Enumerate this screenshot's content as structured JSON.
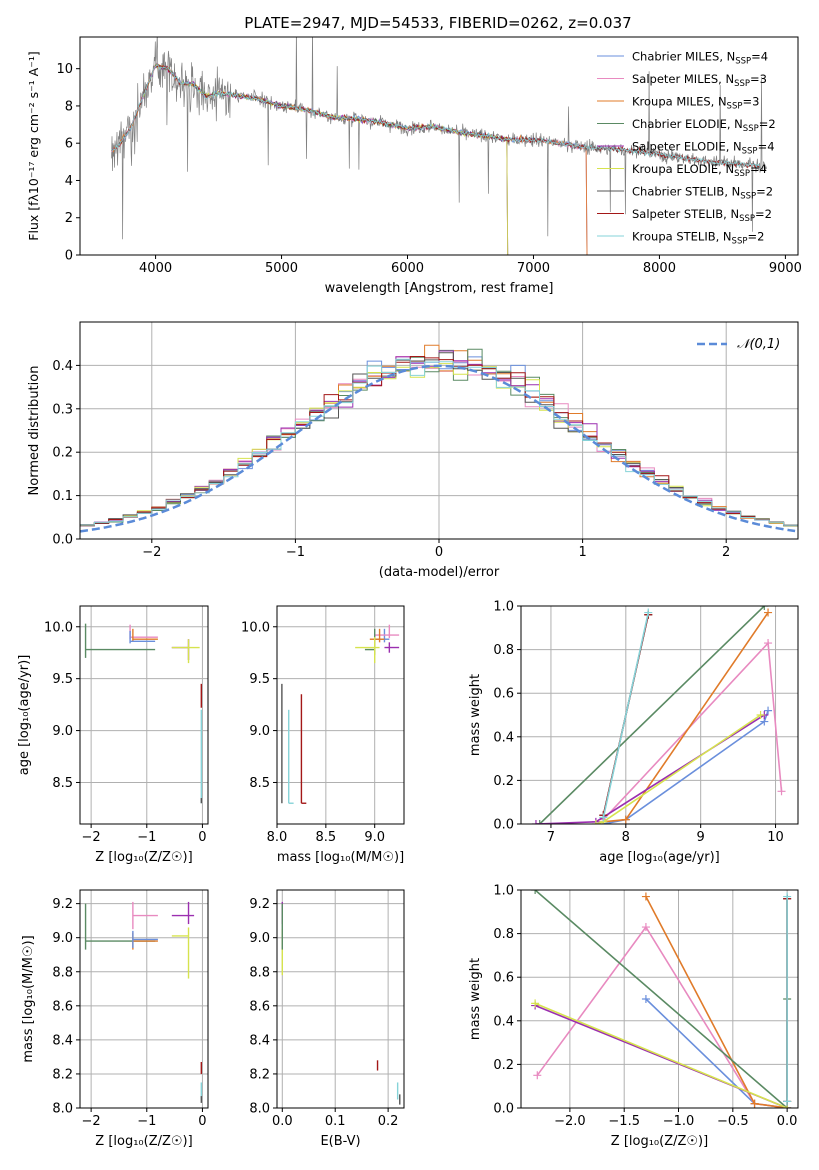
{
  "figure": {
    "title": "PLATE=2947, MJD=54533, FIBERID=0262, z=0.037"
  },
  "colors": {
    "Chabrier MILES": "#6a8fdc",
    "Salpeter MILES": "#e88ac0",
    "Kroupa MILES": "#e07b2a",
    "Chabrier ELODIE": "#5a8a63",
    "Salpeter ELODIE": "#9b2fb0",
    "Kroupa ELODIE": "#d6e34e",
    "Chabrier STELIB": "#555555",
    "Salpeter STELIB": "#a31717",
    "Kroupa STELIB": "#86d3d8",
    "data": "#808080",
    "normal": "#5b8bd8",
    "grid": "#b0b0b0"
  },
  "chart_data": [
    {
      "id": "spectrum",
      "type": "line",
      "title": "PLATE=2947, MJD=54533, FIBERID=0262, z=0.037",
      "xlabel": "wavelength [Angstrom, rest frame]",
      "ylabel": "Flux [fλ10⁻¹⁷ erg cm⁻² s⁻¹ A⁻¹]",
      "xlim": [
        3400,
        9100
      ],
      "ylim": [
        0,
        11.7
      ],
      "xticks": [
        4000,
        5000,
        6000,
        7000,
        8000,
        9000
      ],
      "yticks": [
        0,
        2,
        4,
        6,
        8,
        10
      ],
      "grid": false,
      "legend_position": "top-right",
      "data_x": [
        3650,
        3700,
        3800,
        3900,
        4000,
        4100,
        4200,
        4300,
        4400,
        4500,
        4600,
        4800,
        5000,
        5200,
        5400,
        5600,
        5800,
        6000,
        6200,
        6400,
        6600,
        6800,
        7000,
        7200,
        7400,
        7600,
        7800,
        8000,
        8200,
        8400,
        8600,
        8800,
        9000
      ],
      "data_y": [
        5.6,
        5.8,
        6.8,
        8.5,
        10.2,
        10.0,
        9.2,
        9.2,
        8.5,
        8.7,
        8.6,
        8.4,
        8.0,
        7.8,
        7.4,
        7.3,
        7.1,
        6.8,
        6.9,
        6.6,
        6.4,
        6.2,
        6.2,
        6.0,
        5.8,
        5.7,
        5.6,
        5.4,
        5.2,
        5.0,
        4.9,
        4.8,
        4.7
      ],
      "series": [
        {
          "name": "Chabrier MILES, N_SSP=4",
          "label_main": "Chabrier MILES, N",
          "label_sub": "SSP",
          "label_tail": "=4",
          "range": [
            3650,
            7420
          ]
        },
        {
          "name": "Salpeter MILES, N_SSP=3",
          "label_main": "Salpeter MILES, N",
          "label_sub": "SSP",
          "label_tail": "=3",
          "range": [
            3650,
            7420
          ]
        },
        {
          "name": "Kroupa MILES, N_SSP=3",
          "label_main": "Kroupa MILES, N",
          "label_sub": "SSP",
          "label_tail": "=3",
          "range": [
            3650,
            7420
          ]
        },
        {
          "name": "Chabrier ELODIE, N_SSP=2",
          "label_main": "Chabrier ELODIE, N",
          "label_sub": "SSP",
          "label_tail": "=2",
          "range": [
            3900,
            6790
          ]
        },
        {
          "name": "Salpeter ELODIE, N_SSP=4",
          "label_main": "Salpeter ELODIE, N",
          "label_sub": "SSP",
          "label_tail": "=4",
          "range": [
            3900,
            6790
          ]
        },
        {
          "name": "Kroupa ELODIE, N_SSP=4",
          "label_main": "Kroupa ELODIE, N",
          "label_sub": "SSP",
          "label_tail": "=4",
          "range": [
            3900,
            6790
          ]
        },
        {
          "name": "Chabrier STELIB, N_SSP=2",
          "label_main": "Chabrier STELIB, N",
          "label_sub": "SSP",
          "label_tail": "=2",
          "range": [
            3650,
            8800
          ]
        },
        {
          "name": "Salpeter STELIB, N_SSP=2",
          "label_main": "Salpeter STELIB, N",
          "label_sub": "SSP",
          "label_tail": "=2",
          "range": [
            3650,
            8800
          ]
        },
        {
          "name": "Kroupa STELIB, N_SSP=2",
          "label_main": "Kroupa STELIB, N",
          "label_sub": "SSP",
          "label_tail": "=2",
          "range": [
            3650,
            8800
          ]
        }
      ]
    },
    {
      "id": "residuals",
      "type": "histogram",
      "xlabel": "(data-model)/error",
      "ylabel": "Normed distribution",
      "xlim": [
        -2.5,
        2.5
      ],
      "ylim": [
        0,
        0.5
      ],
      "xticks": [
        -2,
        -1,
        0,
        1,
        2
      ],
      "yticks": [
        0.0,
        0.1,
        0.2,
        0.3,
        0.4
      ],
      "grid": true,
      "legend_position": "top-right",
      "reference": {
        "name": "𝒩(0,1)",
        "mean": 0,
        "sigma": 1
      },
      "bin_width": 0.1
    },
    {
      "id": "age_vs_Z",
      "type": "errorbar",
      "xlabel": "Z [log₁₀(Z/Z☉)]",
      "ylabel": "age  [log₁₀(age/yr)]",
      "xlim": [
        -2.2,
        0.1
      ],
      "ylim": [
        8.1,
        10.2
      ],
      "xticks": [
        -2,
        -1,
        0
      ],
      "yticks": [
        8.5,
        9.0,
        9.5,
        10.0
      ],
      "grid": true,
      "points": [
        {
          "model": "Chabrier ELODIE",
          "x": -2.1,
          "y": 9.78,
          "x_err": [
            0.0,
            1.25
          ],
          "y_err": [
            0.08,
            0.25
          ]
        },
        {
          "model": "Salpeter MILES",
          "x": -1.3,
          "y": 9.9,
          "x_err": [
            0.0,
            0.5
          ],
          "y_err": [
            0.02,
            0.12
          ]
        },
        {
          "model": "Kroupa MILES",
          "x": -1.25,
          "y": 9.88,
          "x_err": [
            0.0,
            0.45
          ],
          "y_err": [
            0.02,
            0.1
          ]
        },
        {
          "model": "Chabrier MILES",
          "x": -1.3,
          "y": 9.86,
          "x_err": [
            0.0,
            0.45
          ],
          "y_err": [
            0.02,
            0.1
          ]
        },
        {
          "model": "Salpeter ELODIE",
          "x": -0.25,
          "y": 9.8,
          "x_err": [
            0.3,
            0.0
          ],
          "y_err": [
            0.12,
            0.08
          ]
        },
        {
          "model": "Kroupa ELODIE",
          "x": -0.25,
          "y": 9.8,
          "x_err": [
            0.3,
            0.2
          ],
          "y_err": [
            0.15,
            0.08
          ]
        },
        {
          "model": "Salpeter STELIB",
          "x": -0.02,
          "y": 9.3,
          "x_err": [
            0.0,
            0.0
          ],
          "y_err": [
            0.08,
            0.15
          ]
        },
        {
          "model": "Kroupa STELIB",
          "x": -0.02,
          "y": 8.3,
          "x_err": [
            0.0,
            0.0
          ],
          "y_err": [
            0.0,
            0.9
          ]
        },
        {
          "model": "Chabrier STELIB",
          "x": -0.02,
          "y": 8.3,
          "x_err": [
            0.0,
            0.0
          ],
          "y_err": [
            0.0,
            0.05
          ]
        }
      ]
    },
    {
      "id": "age_vs_mass",
      "type": "errorbar",
      "xlabel": "mass [log₁₀(M/M☉)]",
      "ylabel": "",
      "xlim": [
        8.0,
        9.3
      ],
      "ylim": [
        8.1,
        10.2
      ],
      "xticks": [
        8.0,
        8.5,
        9.0
      ],
      "yticks": [
        8.5,
        9.0,
        9.5,
        10.0
      ],
      "grid": true,
      "points": [
        {
          "model": "Chabrier MILES",
          "x": 9.1,
          "y": 9.88,
          "x_err": [
            0.1,
            0.05
          ],
          "y_err": [
            0.03,
            0.1
          ]
        },
        {
          "model": "Salpeter MILES",
          "x": 9.15,
          "y": 9.92,
          "x_err": [
            0.15,
            0.1
          ],
          "y_err": [
            0.03,
            0.1
          ]
        },
        {
          "model": "Kroupa MILES",
          "x": 9.05,
          "y": 9.88,
          "x_err": [
            0.1,
            0.05
          ],
          "y_err": [
            0.03,
            0.1
          ]
        },
        {
          "model": "Chabrier ELODIE",
          "x": 9.0,
          "y": 9.78,
          "x_err": [
            0.1,
            0.0
          ],
          "y_err": [
            0.05,
            0.2
          ]
        },
        {
          "model": "Salpeter ELODIE",
          "x": 9.15,
          "y": 9.8,
          "x_err": [
            0.05,
            0.1
          ],
          "y_err": [
            0.05,
            0.05
          ]
        },
        {
          "model": "Kroupa ELODIE",
          "x": 9.0,
          "y": 9.8,
          "x_err": [
            0.2,
            0.05
          ],
          "y_err": [
            0.15,
            0.1
          ]
        },
        {
          "model": "Chabrier STELIB",
          "x": 8.05,
          "y": 8.3,
          "x_err": [
            0.0,
            0.0
          ],
          "y_err": [
            0.0,
            1.15
          ]
        },
        {
          "model": "Salpeter STELIB",
          "x": 8.25,
          "y": 8.3,
          "x_err": [
            0.0,
            0.05
          ],
          "y_err": [
            0.0,
            1.05
          ]
        },
        {
          "model": "Kroupa STELIB",
          "x": 8.12,
          "y": 8.3,
          "x_err": [
            0.0,
            0.05
          ],
          "y_err": [
            0.0,
            0.9
          ]
        }
      ]
    },
    {
      "id": "massweight_vs_age",
      "type": "line",
      "xlabel": "age  [log₁₀(age/yr)]",
      "ylabel": "mass weight",
      "xlim": [
        6.6,
        10.3
      ],
      "ylim": [
        0,
        1.0
      ],
      "xticks": [
        7,
        8,
        9,
        10
      ],
      "yticks": [
        0.0,
        0.2,
        0.4,
        0.6,
        0.8,
        1.0
      ],
      "grid": true,
      "series": [
        {
          "model": "Chabrier MILES",
          "x": [
            7.7,
            8.0,
            9.85,
            9.9
          ],
          "y": [
            0.0,
            0.02,
            0.47,
            0.52
          ]
        },
        {
          "model": "Salpeter MILES",
          "x": [
            7.7,
            9.9,
            10.08
          ],
          "y": [
            0.02,
            0.83,
            0.15
          ]
        },
        {
          "model": "Kroupa MILES",
          "x": [
            7.7,
            8.0,
            9.9
          ],
          "y": [
            0.01,
            0.02,
            0.97
          ]
        },
        {
          "model": "Chabrier ELODIE",
          "x": [
            6.85,
            9.85
          ],
          "y": [
            0.0,
            1.0
          ]
        },
        {
          "model": "Salpeter ELODIE",
          "x": [
            6.8,
            7.6,
            9.85
          ],
          "y": [
            0.0,
            0.01,
            0.5
          ]
        },
        {
          "model": "Kroupa ELODIE",
          "x": [
            7.6,
            7.7,
            9.8
          ],
          "y": [
            0.0,
            0.01,
            0.5
          ]
        },
        {
          "model": "Chabrier STELIB",
          "x": [
            7.7,
            8.3
          ],
          "y": [
            0.04,
            0.96
          ]
        },
        {
          "model": "Salpeter STELIB",
          "x": [
            7.7,
            8.3
          ],
          "y": [
            0.04,
            0.96
          ]
        },
        {
          "model": "Kroupa STELIB",
          "x": [
            7.7,
            8.3
          ],
          "y": [
            0.03,
            0.97
          ]
        }
      ]
    },
    {
      "id": "mass_vs_Z",
      "type": "errorbar",
      "xlabel": "Z [log₁₀(Z/Z☉)]",
      "ylabel": "mass [log₁₀(M/M☉)]",
      "xlim": [
        -2.2,
        0.1
      ],
      "ylim": [
        8.0,
        9.28
      ],
      "xticks": [
        -2,
        -1,
        0
      ],
      "yticks": [
        8.0,
        8.2,
        8.4,
        8.6,
        8.8,
        9.0,
        9.2
      ],
      "grid": true,
      "points": [
        {
          "model": "Chabrier ELODIE",
          "x": -2.1,
          "y": 8.98,
          "x_err": [
            0.0,
            1.25
          ],
          "y_err": [
            0.05,
            0.22
          ]
        },
        {
          "model": "Salpeter MILES",
          "x": -1.25,
          "y": 9.13,
          "x_err": [
            0.0,
            0.45
          ],
          "y_err": [
            0.08,
            0.08
          ]
        },
        {
          "model": "Kroupa MILES",
          "x": -1.25,
          "y": 8.98,
          "x_err": [
            0.0,
            0.45
          ],
          "y_err": [
            0.05,
            0.05
          ]
        },
        {
          "model": "Chabrier MILES",
          "x": -1.25,
          "y": 8.99,
          "x_err": [
            0.0,
            0.45
          ],
          "y_err": [
            0.05,
            0.05
          ]
        },
        {
          "model": "Salpeter ELODIE",
          "x": -0.25,
          "y": 9.13,
          "x_err": [
            0.3,
            0.1
          ],
          "y_err": [
            0.05,
            0.08
          ]
        },
        {
          "model": "Kroupa ELODIE",
          "x": -0.25,
          "y": 9.01,
          "x_err": [
            0.3,
            0.0
          ],
          "y_err": [
            0.25,
            0.05
          ]
        },
        {
          "model": "Salpeter STELIB",
          "x": -0.02,
          "y": 8.25,
          "x_err": [
            0.0,
            0.0
          ],
          "y_err": [
            0.05,
            0.02
          ]
        },
        {
          "model": "Kroupa STELIB",
          "x": -0.02,
          "y": 8.1,
          "x_err": [
            0.0,
            0.0
          ],
          "y_err": [
            0.05,
            0.05
          ]
        },
        {
          "model": "Chabrier STELIB",
          "x": -0.02,
          "y": 8.05,
          "x_err": [
            0.0,
            0.0
          ],
          "y_err": [
            0.02,
            0.02
          ]
        }
      ]
    },
    {
      "id": "mass_vs_ebv",
      "type": "errorbar",
      "xlabel": "E(B-V)",
      "ylabel": "",
      "xlim": [
        -0.01,
        0.23
      ],
      "ylim": [
        8.0,
        9.28
      ],
      "xticks": [
        0.0,
        0.1,
        0.2
      ],
      "yticks": [
        8.0,
        8.2,
        8.4,
        8.6,
        8.8,
        9.0,
        9.2
      ],
      "grid": true,
      "points": [
        {
          "model": "Salpeter ELODIE",
          "x": 0.0,
          "y": 9.13,
          "x_err": [
            0.0,
            0.0
          ],
          "y_err": [
            0.05,
            0.08
          ]
        },
        {
          "model": "Kroupa ELODIE",
          "x": 0.0,
          "y": 9.0,
          "x_err": [
            0.0,
            0.0
          ],
          "y_err": [
            0.22,
            0.05
          ]
        },
        {
          "model": "Chabrier ELODIE",
          "x": 0.0,
          "y": 8.98,
          "x_err": [
            0.0,
            0.0
          ],
          "y_err": [
            0.05,
            0.22
          ]
        },
        {
          "model": "Salpeter STELIB",
          "x": 0.18,
          "y": 8.25,
          "x_err": [
            0.0,
            0.0
          ],
          "y_err": [
            0.03,
            0.03
          ]
        },
        {
          "model": "Kroupa STELIB",
          "x": 0.218,
          "y": 8.1,
          "x_err": [
            0.0,
            0.0
          ],
          "y_err": [
            0.05,
            0.05
          ]
        },
        {
          "model": "Chabrier STELIB",
          "x": 0.222,
          "y": 8.05,
          "x_err": [
            0.0,
            0.0
          ],
          "y_err": [
            0.03,
            0.03
          ]
        }
      ]
    },
    {
      "id": "massweight_vs_Z",
      "type": "line",
      "xlabel": "Z [log₁₀(Z/Z☉)]",
      "ylabel": "mass weight",
      "xlim": [
        -2.45,
        0.1
      ],
      "ylim": [
        0,
        1.0
      ],
      "xticks": [
        -2.0,
        -1.5,
        -1.0,
        -0.5,
        0.0
      ],
      "yticks": [
        0.0,
        0.2,
        0.4,
        0.6,
        0.8,
        1.0
      ],
      "grid": true,
      "series": [
        {
          "model": "Chabrier MILES",
          "x": [
            -1.3,
            -0.3,
            0.0
          ],
          "y": [
            0.5,
            0.02,
            0.0
          ]
        },
        {
          "model": "Salpeter MILES",
          "x": [
            -2.3,
            -1.3,
            -0.3,
            0.0
          ],
          "y": [
            0.15,
            0.83,
            0.02,
            0.0
          ]
        },
        {
          "model": "Kroupa MILES",
          "x": [
            -1.3,
            -0.3,
            0.0
          ],
          "y": [
            0.97,
            0.02,
            0.0
          ]
        },
        {
          "model": "Chabrier ELODIE",
          "x": [
            -2.32,
            0.0,
            0.0
          ],
          "y": [
            1.0,
            0.0,
            0.5
          ]
        },
        {
          "model": "Salpeter ELODIE",
          "x": [
            -2.32,
            0.0
          ],
          "y": [
            0.47,
            0.0
          ]
        },
        {
          "model": "Kroupa ELODIE",
          "x": [
            -2.32,
            0.0
          ],
          "y": [
            0.48,
            0.0
          ]
        },
        {
          "model": "Chabrier STELIB",
          "x": [
            0.0,
            0.0
          ],
          "y": [
            0.03,
            0.96
          ]
        },
        {
          "model": "Salpeter STELIB",
          "x": [
            0.0,
            0.0
          ],
          "y": [
            0.03,
            0.96
          ]
        },
        {
          "model": "Kroupa STELIB",
          "x": [
            0.0,
            0.0
          ],
          "y": [
            0.03,
            0.97
          ]
        }
      ]
    }
  ]
}
